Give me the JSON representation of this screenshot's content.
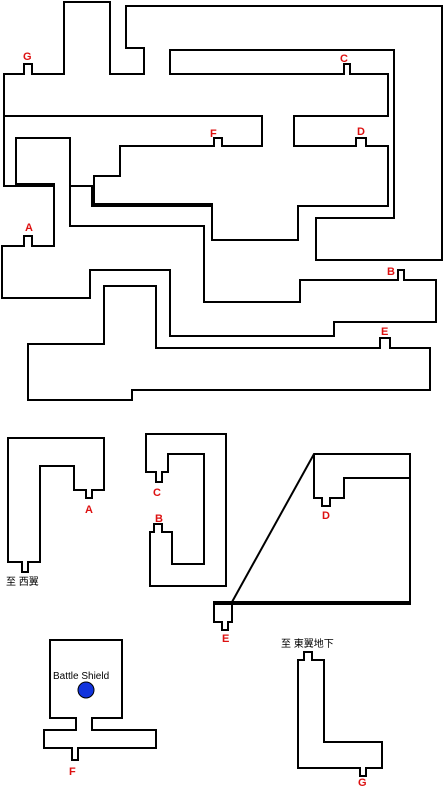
{
  "connector_labels": {
    "A": "A",
    "B": "B",
    "C": "C",
    "D": "D",
    "E": "E",
    "F": "F",
    "G": "G"
  },
  "exit_labels": {
    "west_wing": "至 西翼",
    "east_wing_basement": "至 東翼地下"
  },
  "item": {
    "name": "Battle Shield",
    "marker_color": "#1133dd"
  },
  "colors": {
    "label_red": "#dd1111",
    "wall": "#000000",
    "floor": "#ffffff"
  }
}
